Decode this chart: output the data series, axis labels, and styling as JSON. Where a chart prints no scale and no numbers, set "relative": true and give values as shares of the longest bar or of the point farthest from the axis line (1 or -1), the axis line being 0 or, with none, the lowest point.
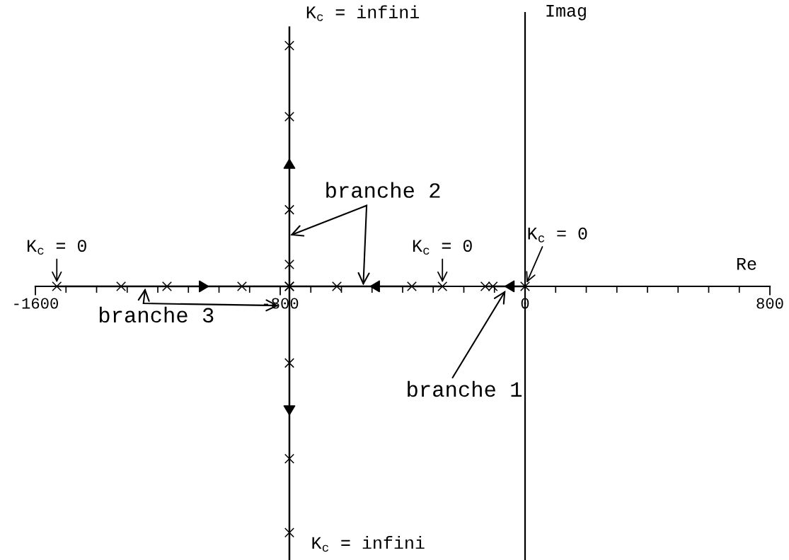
{
  "chart_data": {
    "type": "line",
    "relative": true,
    "xlabel": "Re",
    "ylabel": "Imag",
    "xlim": [
      -1600,
      800
    ],
    "xticks": [
      -1600,
      {
        "value": -1500,
        "label": null
      },
      {
        "value": -1400,
        "label": null
      },
      {
        "value": -1300,
        "label": null
      },
      {
        "value": -1200,
        "label": null
      },
      {
        "value": -1100,
        "label": null
      },
      {
        "value": -1000,
        "label": null
      },
      {
        "value": -900,
        "label": null
      },
      -800,
      {
        "value": -700,
        "label": null
      },
      {
        "value": -600,
        "label": null
      },
      {
        "value": -500,
        "label": null
      },
      {
        "value": -400,
        "label": null
      },
      {
        "value": -300,
        "label": null
      },
      {
        "value": -200,
        "label": null
      },
      {
        "value": -100,
        "label": null
      },
      0,
      {
        "value": 100,
        "label": null
      },
      {
        "value": 200,
        "label": null
      },
      {
        "value": 300,
        "label": null
      },
      {
        "value": 400,
        "label": null
      },
      {
        "value": 500,
        "label": null
      },
      {
        "value": 600,
        "label": null
      },
      {
        "value": 700,
        "label": null
      },
      800
    ],
    "series": [
      {
        "name": "branche 1",
        "color": "#000000",
        "marker": "cross",
        "x": [
          0,
          -105,
          -130
        ],
        "values": [
          0,
          0,
          0
        ]
      },
      {
        "name": "branche 2",
        "color": "#000000",
        "marker": "cross",
        "x": [
          -270,
          -370,
          -615,
          -770,
          -770,
          -770,
          -770,
          -770
        ],
        "values": [
          0,
          0,
          0,
          0,
          0.08,
          0.28,
          0.62,
          0.88
        ]
      },
      {
        "name": "branche 3",
        "color": "#000000",
        "marker": "cross",
        "x": [
          -1530,
          -1320,
          -1170,
          -925,
          -770,
          -770,
          -770,
          -770
        ],
        "values": [
          0,
          0,
          0,
          0,
          0,
          -0.28,
          -0.63,
          -0.9
        ]
      },
      {
        "color": "#000000",
        "x": [
          -770,
          -770
        ],
        "values": [
          0.88,
          0.95
        ]
      },
      {
        "color": "#000000",
        "x": [
          -770,
          -770
        ],
        "values": [
          -0.9,
          -1
        ]
      }
    ],
    "annotations": [
      {
        "text": "K$_{c}$ = infini",
        "x": -770,
        "y": 0.95
      },
      {
        "text": "K$_{c}$ = infini",
        "x": -770,
        "y": -1
      },
      {
        "text": "K$_{c}$ = 0",
        "x": -1530,
        "y": 0
      },
      {
        "text": "K$_{c}$ = 0",
        "x": -270,
        "y": 0
      },
      {
        "text": "K$_{c}$ = 0",
        "x": 0,
        "y": 0
      }
    ]
  }
}
